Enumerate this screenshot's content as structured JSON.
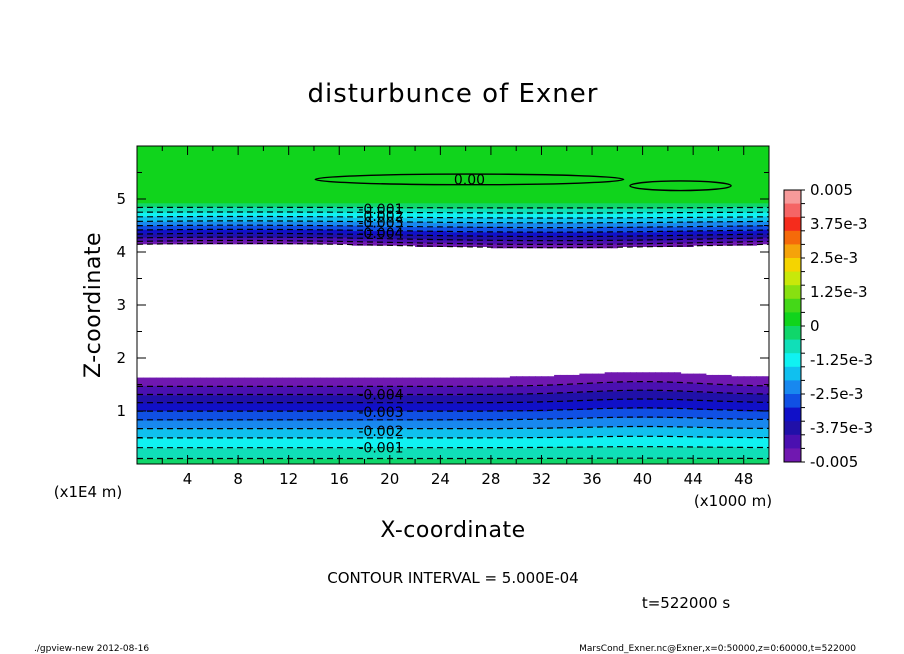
{
  "chart_data": {
    "type": "heatmap",
    "title": "disturbunce of Exner",
    "xlabel": "X-coordinate",
    "ylabel": "Z-coordinate",
    "x_unit": "(x1000 m)",
    "y_unit": "(x1E4 m)",
    "xlim": [
      0,
      50
    ],
    "ylim": [
      0,
      6
    ],
    "x_ticks": [
      4,
      8,
      12,
      16,
      20,
      24,
      28,
      32,
      36,
      40,
      44,
      48
    ],
    "y_ticks": [
      1,
      2,
      3,
      4,
      5
    ],
    "x_minor_step": 2,
    "y_minor_step": 0.5,
    "colorbar": {
      "min": -0.005,
      "max": 0.005,
      "labels": [
        "0.005",
        "3.75e-3",
        "2.5e-3",
        "1.25e-3",
        "0",
        "-1.25e-3",
        "-2.5e-3",
        "-3.75e-3",
        "-0.005"
      ],
      "colors": [
        "#f79a9a",
        "#f56565",
        "#f52c1c",
        "#f56a0a",
        "#f5a30a",
        "#f5d400",
        "#c8e80a",
        "#88e010",
        "#44d818",
        "#10d41c",
        "#10d66a",
        "#10dfb8",
        "#10f2f2",
        "#10c0ef",
        "#1888ef",
        "#1050e4",
        "#1010c8",
        "#2010a8",
        "#4a10b0",
        "#7018b0"
      ]
    },
    "contour_interval": "CONTOUR INTERVAL = 5.000E-04",
    "time_label": "t=522000 s",
    "contour_labels": [
      {
        "text": "0.00",
        "x": 26.3,
        "z": 5.37
      },
      {
        "text": "-0.001",
        "x": 19.3,
        "z": 4.81
      },
      {
        "text": "-0.002",
        "x": 19.3,
        "z": 4.68
      },
      {
        "text": "-0.003",
        "x": 19.3,
        "z": 4.56
      },
      {
        "text": "-0.004",
        "x": 19.3,
        "z": 4.36
      },
      {
        "text": "-0.004",
        "x": 19.3,
        "z": 1.31
      },
      {
        "text": "-0.003",
        "x": 19.3,
        "z": 0.98
      },
      {
        "text": "-0.002",
        "x": 19.3,
        "z": 0.62
      },
      {
        "text": "-0.001",
        "x": 19.3,
        "z": 0.31
      }
    ],
    "zero_contours": [
      {
        "x_center": 26.3,
        "z_center": 5.37,
        "x_half": 12.2,
        "z_half": 0.1
      },
      {
        "x_center": 43.0,
        "z_center": 5.25,
        "x_half": 4.0,
        "z_half": 0.09
      }
    ]
  },
  "footer": {
    "left": "./gpview-new   2012-08-16",
    "right": "MarsCond_Exner.nc@Exner,x=0:50000,z=0:60000,t=522000"
  }
}
